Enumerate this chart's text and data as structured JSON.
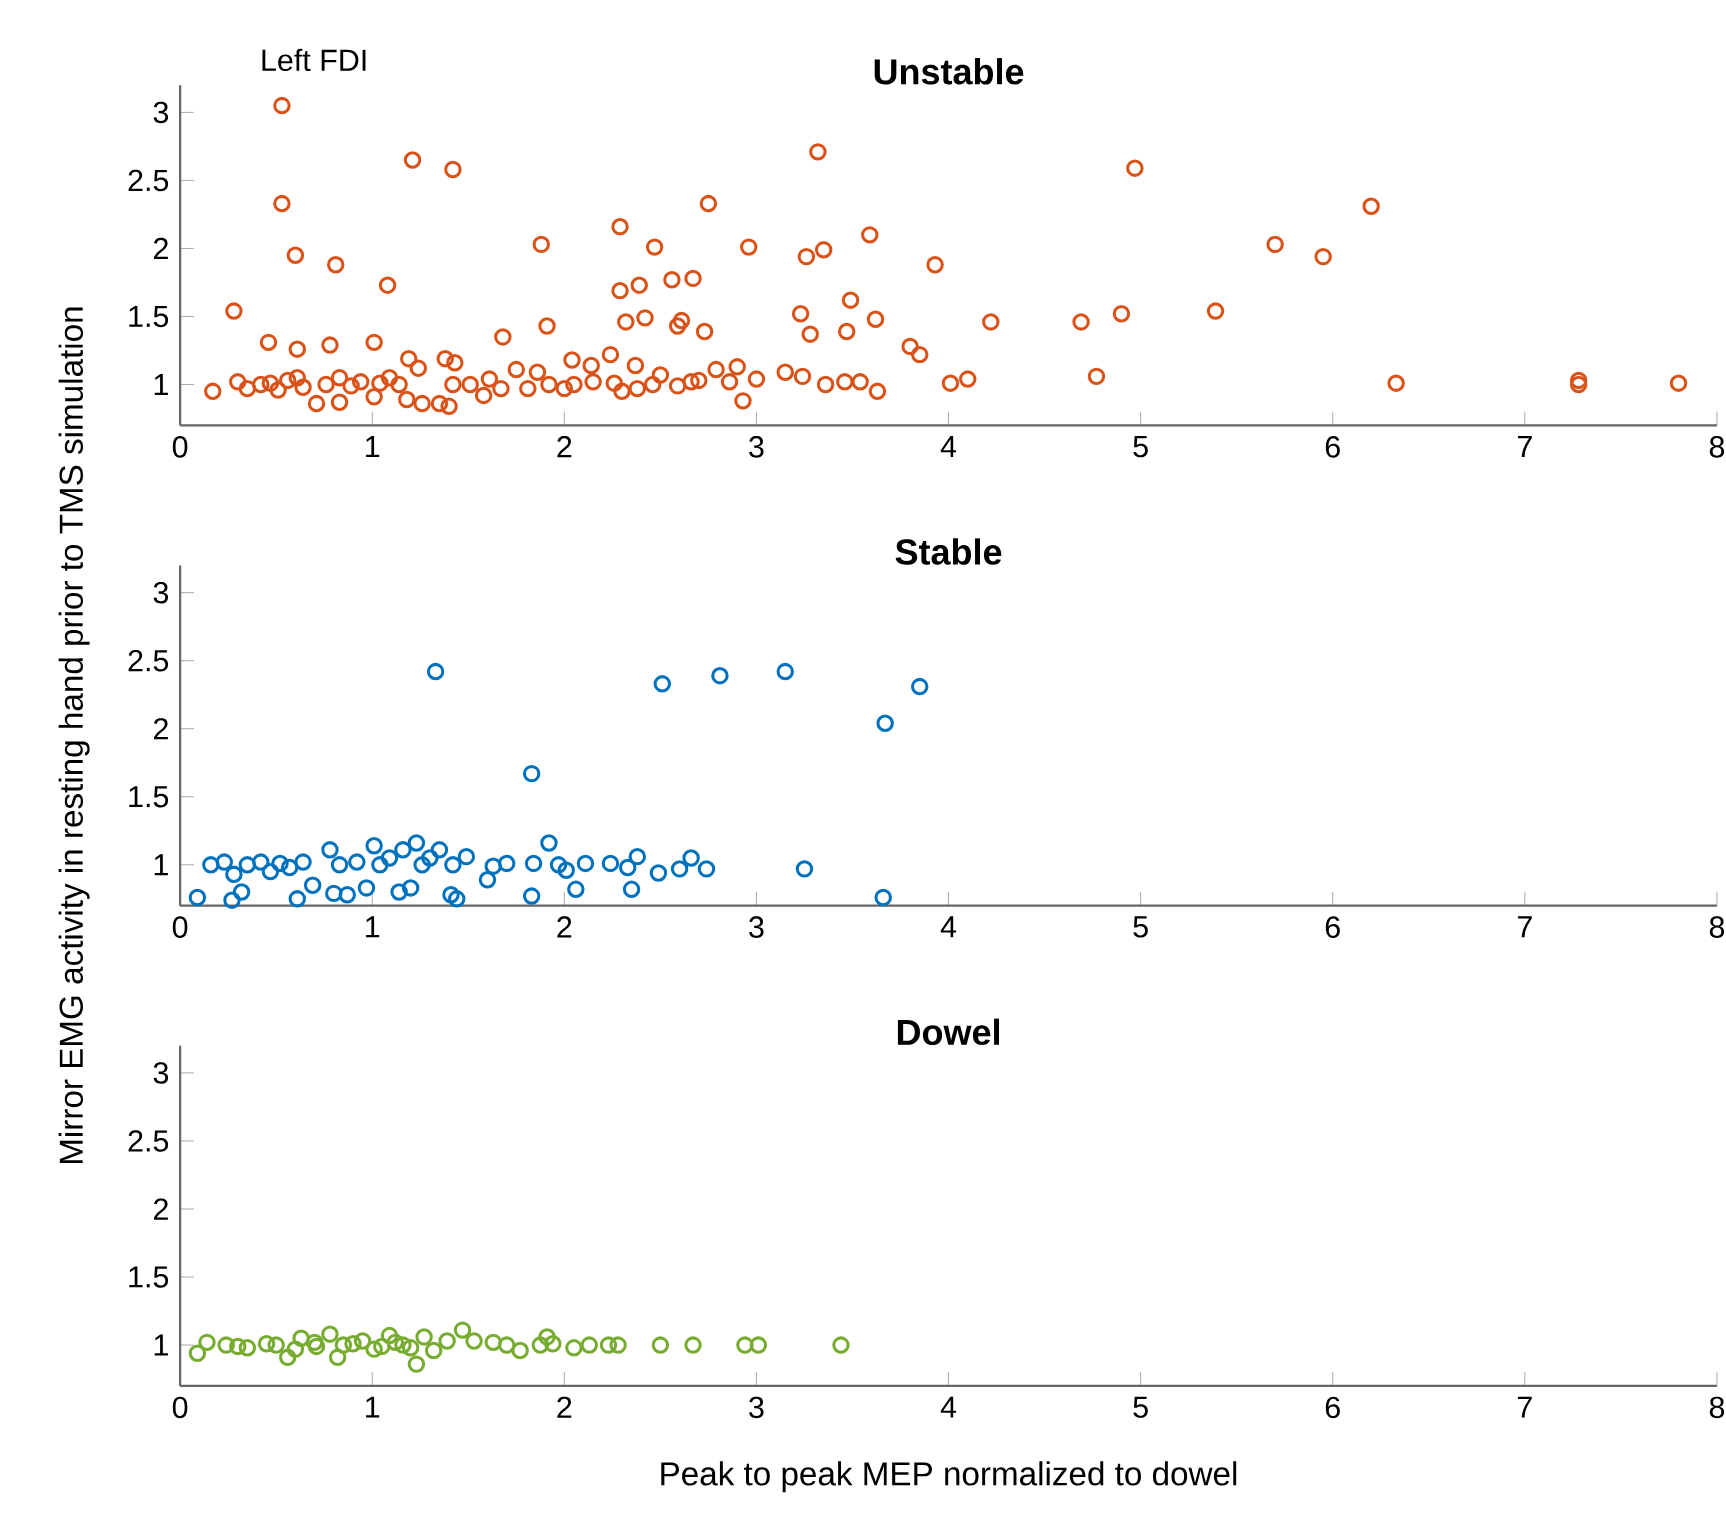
{
  "chart_data": [
    {
      "type": "scatter",
      "title": "Unstable",
      "annotations": [
        "Left FDI"
      ],
      "xlim": [
        0,
        8
      ],
      "ylim": [
        0.7,
        3.2
      ],
      "xticks": [
        0,
        1,
        2,
        3,
        4,
        5,
        6,
        7,
        8
      ],
      "yticks": [
        1,
        1.5,
        2,
        2.5,
        3
      ],
      "grid": false,
      "marker": "circle",
      "color": "#d95319",
      "x": [
        0.53,
        0.53,
        0.6,
        0.81,
        1.08,
        0.28,
        1.21,
        1.42,
        1.88,
        1.91,
        1.68,
        0.46,
        0.61,
        0.78,
        1.01,
        2.29,
        2.29,
        2.39,
        2.47,
        2.32,
        2.42,
        2.56,
        2.67,
        2.75,
        2.59,
        2.61,
        2.73,
        2.96,
        2.24,
        2.37,
        2.04,
        3.32,
        3.26,
        3.35,
        3.23,
        3.28,
        3.49,
        3.47,
        3.59,
        3.62,
        3.8,
        3.85,
        3.93,
        0.17,
        0.3,
        0.35,
        0.42,
        0.47,
        0.51,
        0.56,
        0.61,
        0.64,
        0.71,
        0.76,
        0.83,
        0.83,
        0.89,
        0.94,
        1.01,
        1.04,
        1.09,
        1.14,
        1.19,
        1.18,
        1.24,
        1.26,
        1.35,
        1.4,
        1.38,
        1.43,
        1.42,
        1.51,
        1.58,
        1.61,
        1.67,
        1.75,
        1.81,
        1.86,
        1.92,
        2.0,
        2.05,
        2.14,
        2.15,
        2.26,
        2.3,
        2.38,
        2.46,
        2.5,
        2.59,
        2.66,
        2.7,
        2.79,
        2.86,
        2.9,
        2.93,
        3.0,
        3.15,
        3.24,
        3.36,
        3.46,
        3.54,
        3.63,
        4.01,
        4.97,
        6.2,
        5.7,
        5.95,
        5.39,
        4.9,
        4.69,
        4.22,
        4.77,
        4.1,
        6.33,
        7.28,
        7.28,
        7.8
      ],
      "values": [
        3.05,
        2.33,
        1.95,
        1.88,
        1.73,
        1.54,
        2.65,
        2.58,
        2.03,
        1.43,
        1.35,
        1.31,
        1.26,
        1.29,
        1.31,
        2.16,
        1.69,
        1.73,
        2.01,
        1.46,
        1.49,
        1.77,
        1.78,
        2.33,
        1.43,
        1.47,
        1.39,
        2.01,
        1.22,
        1.14,
        1.18,
        2.71,
        1.94,
        1.99,
        1.52,
        1.37,
        1.62,
        1.39,
        2.1,
        1.48,
        1.28,
        1.22,
        1.88,
        0.95,
        1.02,
        0.97,
        1.0,
        1.01,
        0.96,
        1.03,
        1.05,
        0.98,
        0.86,
        1.0,
        0.87,
        1.05,
        0.99,
        1.02,
        0.91,
        1.01,
        1.05,
        1.0,
        1.19,
        0.89,
        1.12,
        0.86,
        0.86,
        0.84,
        1.19,
        1.16,
        1.0,
        1.0,
        0.92,
        1.04,
        0.97,
        1.11,
        0.97,
        1.09,
        1.0,
        0.97,
        1.0,
        1.14,
        1.02,
        1.01,
        0.95,
        0.97,
        1.0,
        1.07,
        0.99,
        1.02,
        1.03,
        1.11,
        1.02,
        1.13,
        0.88,
        1.04,
        1.09,
        1.06,
        1.0,
        1.02,
        1.02,
        0.95,
        1.01,
        2.59,
        2.31,
        2.03,
        1.94,
        1.54,
        1.52,
        1.46,
        1.46,
        1.06,
        1.04,
        1.01,
        1.03,
        1.0,
        1.01
      ]
    },
    {
      "type": "scatter",
      "title": "Stable",
      "ylabel": "Mirror EMG activity in resting hand prior to TMS simulation",
      "xlim": [
        0,
        8
      ],
      "ylim": [
        0.7,
        3.2
      ],
      "xticks": [
        0,
        1,
        2,
        3,
        4,
        5,
        6,
        7,
        8
      ],
      "yticks": [
        1,
        1.5,
        2,
        2.5,
        3
      ],
      "grid": false,
      "marker": "circle",
      "color": "#0072bd",
      "x": [
        1.33,
        2.51,
        2.81,
        3.15,
        3.67,
        3.85,
        1.83,
        1.92,
        3.25,
        3.66,
        0.09,
        0.27,
        0.16,
        0.23,
        0.28,
        0.32,
        0.35,
        0.42,
        0.47,
        0.52,
        0.57,
        0.61,
        0.64,
        0.69,
        0.78,
        0.8,
        0.83,
        0.87,
        0.92,
        0.97,
        1.01,
        1.04,
        1.09,
        1.14,
        1.16,
        1.2,
        1.23,
        1.26,
        1.3,
        1.35,
        1.41,
        1.44,
        1.42,
        1.49,
        1.6,
        1.63,
        1.7,
        1.84,
        1.83,
        1.97,
        2.01,
        2.06,
        2.11,
        2.24,
        2.33,
        2.35,
        2.38,
        2.49,
        2.6,
        2.66,
        2.74
      ],
      "values": [
        2.42,
        2.33,
        2.39,
        2.42,
        2.04,
        2.31,
        1.67,
        1.16,
        0.97,
        0.76,
        0.76,
        0.74,
        1.0,
        1.02,
        0.93,
        0.8,
        1.0,
        1.02,
        0.95,
        1.01,
        0.98,
        0.75,
        1.02,
        0.85,
        1.11,
        0.79,
        1.0,
        0.78,
        1.02,
        0.83,
        1.14,
        1.0,
        1.05,
        0.8,
        1.11,
        0.83,
        1.16,
        1.0,
        1.05,
        1.11,
        0.78,
        0.75,
        1.0,
        1.06,
        0.89,
        0.99,
        1.01,
        1.01,
        0.77,
        1.0,
        0.96,
        0.82,
        1.01,
        1.01,
        0.98,
        0.82,
        1.06,
        0.94,
        0.97,
        1.05,
        0.97
      ]
    },
    {
      "type": "scatter",
      "title": "Dowel",
      "xlabel": "Peak to peak MEP normalized to dowel",
      "xlim": [
        0,
        8
      ],
      "ylim": [
        0.7,
        3.2
      ],
      "xticks": [
        0,
        1,
        2,
        3,
        4,
        5,
        6,
        7,
        8
      ],
      "yticks": [
        1,
        1.5,
        2,
        2.5,
        3
      ],
      "grid": false,
      "marker": "circle",
      "color": "#77ac30",
      "x": [
        0.09,
        0.14,
        0.24,
        0.3,
        0.35,
        0.45,
        0.5,
        0.56,
        0.6,
        0.63,
        0.7,
        0.71,
        0.78,
        0.82,
        0.85,
        0.9,
        0.95,
        1.01,
        1.05,
        1.09,
        1.12,
        1.16,
        1.2,
        1.23,
        1.27,
        1.32,
        1.39,
        1.47,
        1.53,
        1.63,
        1.7,
        1.77,
        1.875,
        1.91,
        1.94,
        2.05,
        2.13,
        2.23,
        2.28,
        2.5,
        2.67,
        2.94,
        3.01,
        3.44
      ],
      "values": [
        0.94,
        1.02,
        1.0,
        0.99,
        0.98,
        1.01,
        1.0,
        0.91,
        0.97,
        1.05,
        1.02,
        0.99,
        1.08,
        0.91,
        1.0,
        1.01,
        1.03,
        0.97,
        0.99,
        1.07,
        1.02,
        1.0,
        0.98,
        0.86,
        1.06,
        0.96,
        1.03,
        1.11,
        1.03,
        1.02,
        1.0,
        0.96,
        1.0,
        1.06,
        1.01,
        0.98,
        1.0,
        1.0,
        1.0,
        1.0,
        1.0,
        1.0,
        1.0,
        1.0
      ]
    }
  ]
}
